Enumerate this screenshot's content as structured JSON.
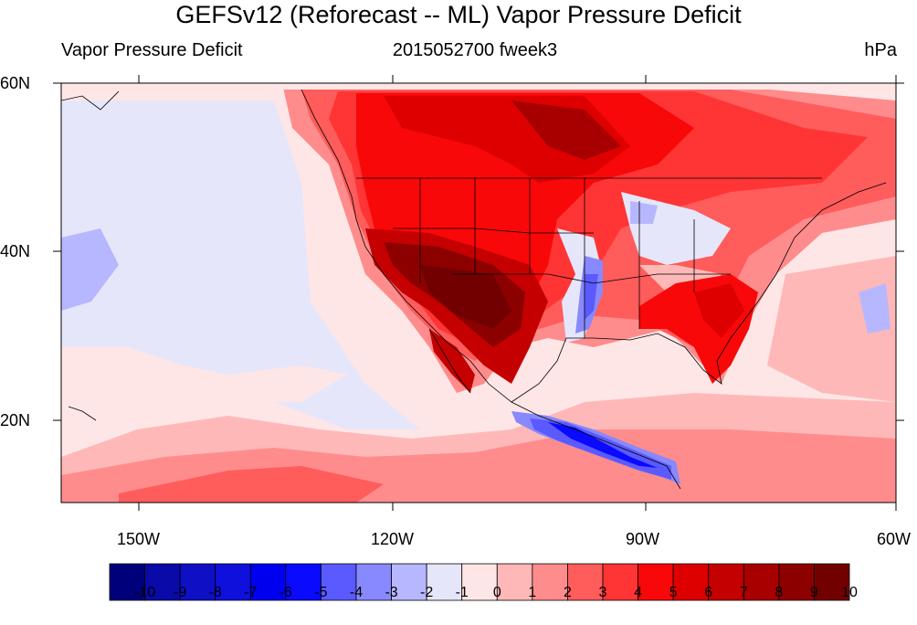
{
  "title": "GEFSv12 (Reforecast -- ML) Vapor Pressure Deficit",
  "subtitle_left": "Vapor Pressure Deficit",
  "subtitle_center": "2015052700 fweek3",
  "units": "hPa",
  "lat_labels": [
    "60N",
    "40N",
    "20N"
  ],
  "lon_labels": [
    "150W",
    "120W",
    "90W",
    "60W"
  ],
  "colorbar": {
    "labels": [
      "-10",
      "-9",
      "-8",
      "-7",
      "-6",
      "-5",
      "-4",
      "-3",
      "-2",
      "-1",
      "0",
      "1",
      "2",
      "3",
      "4",
      "5",
      "6",
      "7",
      "8",
      "9",
      "10"
    ],
    "colors": [
      "#00007a",
      "#0a0aa8",
      "#0f0fc6",
      "#1010dd",
      "#0000f0",
      "#0a0aff",
      "#5a5aff",
      "#8888ff",
      "#b7b7ff",
      "#e6e6fb",
      "#ffe6e6",
      "#ffb8b8",
      "#ff8c8c",
      "#ff5c5c",
      "#ff3434",
      "#f80808",
      "#de0000",
      "#c40000",
      "#a80000",
      "#8c0000",
      "#730000"
    ]
  }
}
